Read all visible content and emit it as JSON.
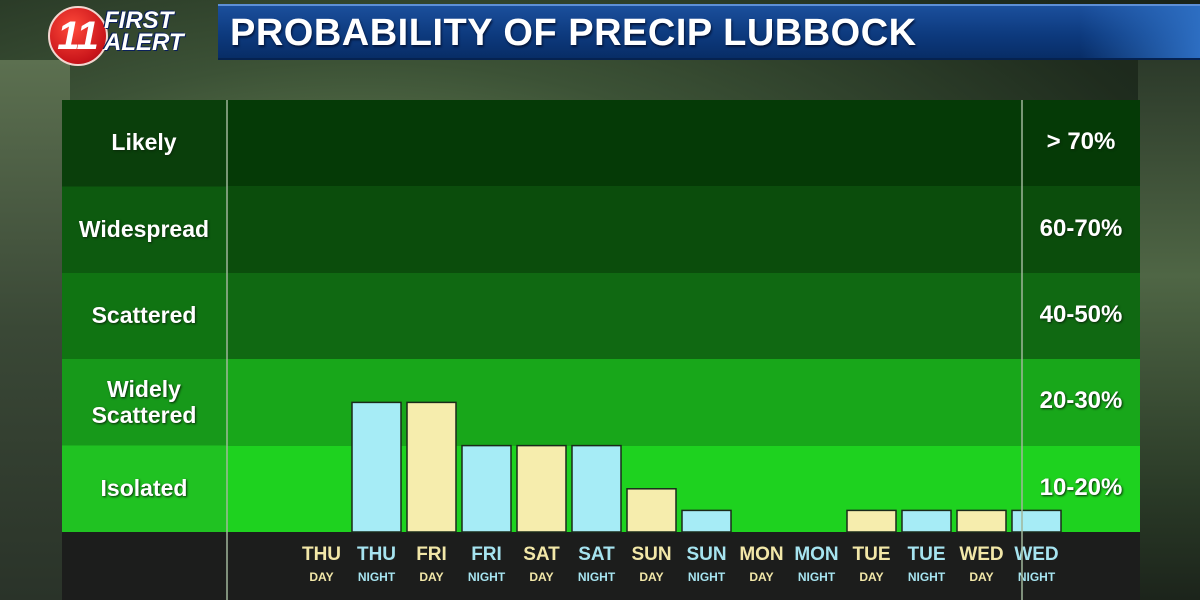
{
  "header": {
    "logo_number": "11",
    "logo_line1": "FIRST",
    "logo_line2": "ALERT",
    "title": "PROBABILITY OF PRECIP LUBBOCK"
  },
  "colors": {
    "day_bar": "#f6edad",
    "night_bar": "#a6ecf6",
    "day_label": "#f2e7a8",
    "night_label": "#a6e4f0",
    "band_likely": "#053a06",
    "band_widespread": "#0b4d0c",
    "band_scattered": "#106912",
    "band_widely": "#18a71a",
    "band_isolated": "#1ed21f",
    "band_label_col": [
      "#0a3f0b",
      "#0d5a0f",
      "#107412",
      "#17991a",
      "#20c222"
    ]
  },
  "chart_data": {
    "type": "bar",
    "bands": [
      {
        "label": "Likely",
        "range": "> 70%"
      },
      {
        "label": "Widespread",
        "range": "60-70%"
      },
      {
        "label": "Scattered",
        "range": "40-50%"
      },
      {
        "label": "Widely Scattered",
        "range": "20-30%"
      },
      {
        "label": "Isolated",
        "range": "10-20%"
      }
    ],
    "categories": [
      {
        "day": "THU",
        "period": "DAY"
      },
      {
        "day": "THU",
        "period": "NIGHT"
      },
      {
        "day": "FRI",
        "period": "DAY"
      },
      {
        "day": "FRI",
        "period": "NIGHT"
      },
      {
        "day": "SAT",
        "period": "DAY"
      },
      {
        "day": "SAT",
        "period": "NIGHT"
      },
      {
        "day": "SUN",
        "period": "DAY"
      },
      {
        "day": "SUN",
        "period": "NIGHT"
      },
      {
        "day": "MON",
        "period": "DAY"
      },
      {
        "day": "MON",
        "period": "NIGHT"
      },
      {
        "day": "TUE",
        "period": "DAY"
      },
      {
        "day": "TUE",
        "period": "NIGHT"
      },
      {
        "day": "WED",
        "period": "DAY"
      },
      {
        "day": "WED",
        "period": "NIGHT"
      }
    ],
    "values_in_band_units": [
      0,
      1.5,
      1.5,
      1.0,
      1.0,
      1.0,
      0.5,
      0.25,
      0,
      0,
      0.25,
      0.25,
      0.25,
      0.25
    ],
    "ylim": [
      0,
      5
    ]
  }
}
